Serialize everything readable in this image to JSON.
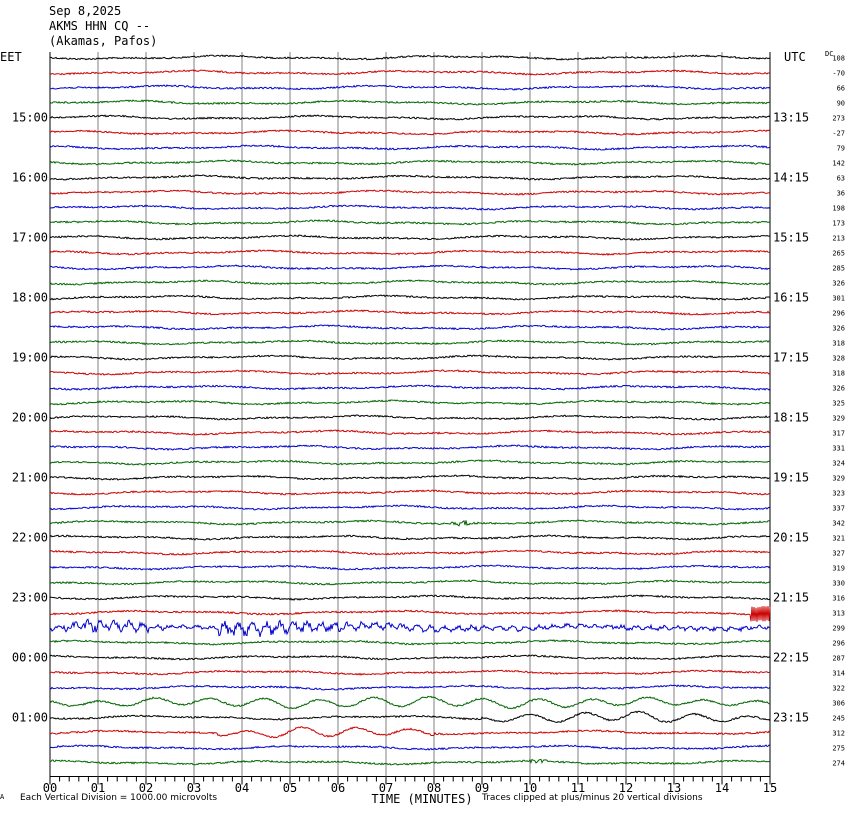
{
  "header": {
    "date": "Sep 8,2025",
    "station": "AKMS HHN CQ --",
    "location": "(Akamas, Pafos)"
  },
  "footer": {
    "scale_note": "Each Vertical Division = 1000.00 microvolts",
    "clip_note": "Traces clipped at plus/minus 20 vertical divisions",
    "corner_mark": "A"
  },
  "colors": {
    "trace_cycle": [
      "#000000",
      "#cc0000",
      "#0000cc",
      "#006600"
    ],
    "grid": "#808080"
  },
  "chart_data": {
    "type": "line",
    "title": "",
    "xlabel": "TIME (MINUTES)",
    "left_axis_label": "EET",
    "right_axis_label": "UTC",
    "dc_label": "DC",
    "x_ticks": [
      "00",
      "01",
      "02",
      "03",
      "04",
      "05",
      "06",
      "07",
      "08",
      "09",
      "10",
      "11",
      "12",
      "13",
      "14",
      "15"
    ],
    "xlim": [
      0,
      15
    ],
    "vertical_grid": true,
    "rows_per_hour": 4,
    "left_hour_labels": [
      "15:00",
      "16:00",
      "17:00",
      "18:00",
      "19:00",
      "20:00",
      "21:00",
      "22:00",
      "23:00",
      "00:00",
      "01:00"
    ],
    "right_hour_labels": [
      "13:15",
      "14:15",
      "15:15",
      "16:15",
      "17:15",
      "18:15",
      "19:15",
      "20:15",
      "21:15",
      "22:15",
      "23:15"
    ],
    "dc_offsets": [
      "108",
      "-70",
      "66",
      "90",
      "273",
      "-27",
      "79",
      "142",
      "63",
      "36",
      "198",
      "173",
      "213",
      "265",
      "285",
      "326",
      "301",
      "296",
      "326",
      "318",
      "328",
      "318",
      "326",
      "325",
      "329",
      "317",
      "331",
      "324",
      "329",
      "323",
      "337",
      "342",
      "321",
      "327",
      "319",
      "330",
      "316",
      "313",
      "299",
      "296",
      "287",
      "314",
      "322",
      "306",
      "245",
      "312",
      "275",
      "274"
    ],
    "events": [
      {
        "trace": 31,
        "start_min": 8.3,
        "end_min": 9.0,
        "description": "small local burst"
      },
      {
        "trace": 38,
        "start_min": 0.0,
        "end_min": 15.0,
        "description": "teleseismic earthquake arrival"
      },
      {
        "trace": 37,
        "start_min": 14.6,
        "end_min": 15.0,
        "description": "clipped arrival onset"
      },
      {
        "trace": 43,
        "start_min": 0.0,
        "end_min": 15.0,
        "description": "long-period surface waves"
      },
      {
        "trace": 44,
        "start_min": 9.0,
        "end_min": 15.0,
        "description": "long-period surface waves"
      },
      {
        "trace": 45,
        "start_min": 3.5,
        "end_min": 8.0,
        "description": "long-period surface waves"
      },
      {
        "trace": 47,
        "start_min": 9.8,
        "end_min": 10.4,
        "description": "small local burst"
      }
    ]
  }
}
